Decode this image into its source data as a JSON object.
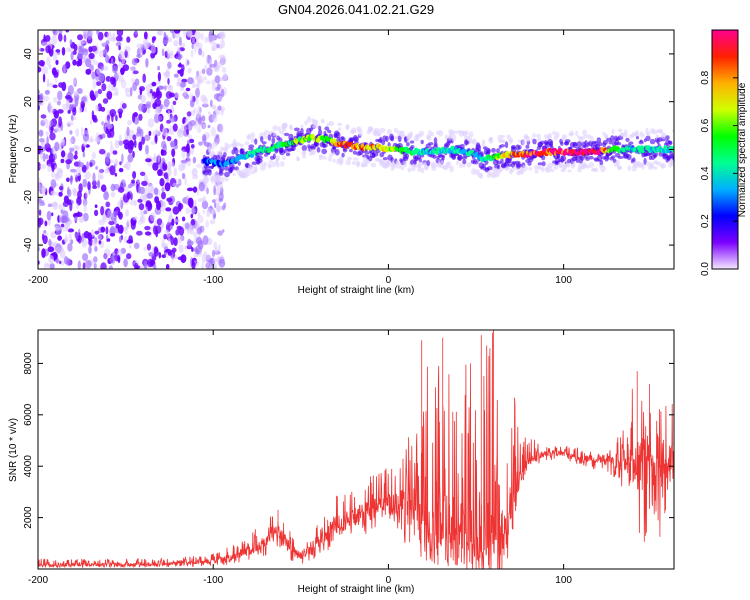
{
  "figure": {
    "title": "GN04.2026.041.02.21.G29"
  },
  "chart_data": [
    {
      "type": "heatmap",
      "xlabel": "Height of straight line (km)",
      "ylabel": "Frequency (Hz)",
      "xlim": [
        -200,
        163
      ],
      "ylim": [
        -50,
        50
      ],
      "xticks": [
        -200,
        -100,
        0,
        100
      ],
      "yticks": [
        -40,
        -20,
        0,
        20,
        40
      ],
      "colorbar": {
        "label": "Normalized spectral amplitude",
        "range": [
          0,
          1
        ],
        "ticks": [
          0.0,
          0.2,
          0.4,
          0.6,
          0.8
        ],
        "colors": [
          "#f4e8ff",
          "#7b00ff",
          "#0000ff",
          "#00b0ff",
          "#00ff90",
          "#00ff00",
          "#d0ff00",
          "#ffb000",
          "#ff2000",
          "#ff0090"
        ]
      },
      "noise_region": {
        "x": [
          -200,
          -93
        ],
        "y": [
          -50,
          50
        ]
      },
      "ridge": {
        "x": [
          -105,
          -95,
          -85,
          -75,
          -65,
          -55,
          -45,
          -35,
          -25,
          -15,
          -5,
          5,
          15,
          25,
          35,
          45,
          55,
          60,
          70,
          80,
          90,
          100,
          110,
          120,
          130,
          140,
          150,
          163
        ],
        "frequency": [
          -5,
          -6,
          -4,
          -1,
          1,
          3,
          5,
          4,
          2,
          1,
          1,
          0,
          -1,
          -1,
          0,
          -1,
          -4,
          -3,
          -2,
          -2,
          -1,
          -1,
          -1,
          -1,
          0,
          0,
          0,
          0
        ],
        "amplitude": [
          0.25,
          0.3,
          0.35,
          0.45,
          0.5,
          0.55,
          0.65,
          0.6,
          0.85,
          0.8,
          0.8,
          0.6,
          0.45,
          0.45,
          0.4,
          0.4,
          0.4,
          0.6,
          0.8,
          0.95,
          0.95,
          1.0,
          1.0,
          1.0,
          0.5,
          0.45,
          0.45,
          0.4
        ]
      }
    },
    {
      "type": "line",
      "xlabel": "Height of straight line (km)",
      "ylabel": "SNR (10 * v/v)",
      "xlim": [
        -200,
        163
      ],
      "ylim": [
        0,
        9300
      ],
      "xticks": [
        -200,
        -100,
        0,
        100
      ],
      "yticks": [
        2000,
        4000,
        6000,
        8000
      ],
      "color": "#ee3333",
      "envelope": {
        "x": [
          -200,
          -150,
          -120,
          -100,
          -90,
          -80,
          -70,
          -64,
          -60,
          -55,
          -50,
          -45,
          -40,
          -35,
          -30,
          -20,
          -10,
          0,
          5,
          10,
          15,
          20,
          25,
          30,
          40,
          50,
          55,
          60,
          65,
          70,
          75,
          80,
          90,
          100,
          110,
          120,
          125,
          130,
          135,
          140,
          145,
          150,
          155,
          160,
          163
        ],
        "base": [
          150,
          180,
          220,
          300,
          450,
          700,
          1100,
          1500,
          1200,
          700,
          500,
          700,
          1000,
          1400,
          1700,
          2000,
          2300,
          2500,
          2600,
          2700,
          2800,
          1800,
          1500,
          1500,
          1200,
          1000,
          1000,
          1000,
          1200,
          2000,
          3600,
          4200,
          4500,
          4500,
          4300,
          4300,
          4300,
          4200,
          4000,
          3800,
          4000,
          4200,
          4300,
          4300,
          4300
        ],
        "top": [
          400,
          420,
          450,
          600,
          900,
          1400,
          2000,
          2300,
          2100,
          1300,
          900,
          1200,
          1800,
          2400,
          2900,
          3300,
          3700,
          4000,
          4200,
          5000,
          6000,
          8800,
          7500,
          9000,
          8800,
          9000,
          9300,
          9300,
          8000,
          8700,
          5500,
          5100,
          4900,
          4900,
          4700,
          4500,
          4600,
          5200,
          5500,
          7700,
          7300,
          6800,
          6300,
          7200,
          6800
        ],
        "bottom": [
          50,
          60,
          80,
          100,
          150,
          300,
          500,
          900,
          400,
          150,
          100,
          200,
          400,
          700,
          900,
          1200,
          1400,
          1500,
          1200,
          900,
          700,
          300,
          150,
          200,
          100,
          150,
          100,
          200,
          300,
          800,
          3200,
          3800,
          4200,
          4200,
          4000,
          3800,
          3700,
          3500,
          3000,
          2000,
          500,
          2500,
          1000,
          3000,
          3200
        ]
      },
      "peaks": [
        {
          "x": 19,
          "y": 8900
        },
        {
          "x": 31,
          "y": 9000
        },
        {
          "x": 60,
          "y": 9300
        },
        {
          "x": 53,
          "y": 9100
        },
        {
          "x": 142,
          "y": 7700
        },
        {
          "x": 149,
          "y": 7200
        },
        {
          "x": 163,
          "y": 6800
        },
        {
          "x": -63,
          "y": 2300
        }
      ],
      "samples": 1800
    }
  ]
}
